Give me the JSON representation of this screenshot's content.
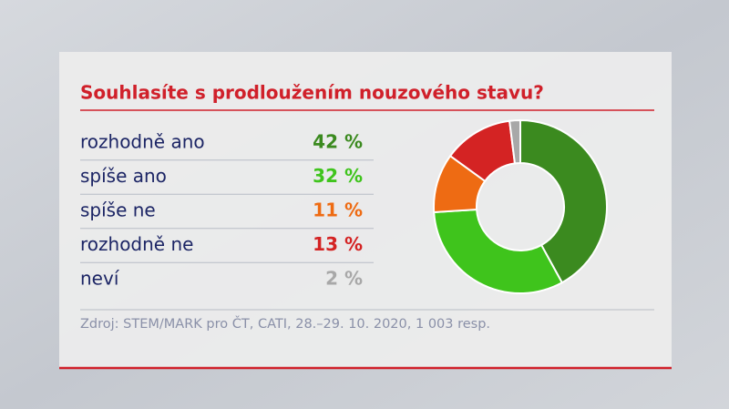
{
  "chart_data": {
    "type": "donut",
    "title": "Souhlasíte s prodloužením nouzového stavu?",
    "categories": [
      "rozhodně ano",
      "spíše ano",
      "spíše ne",
      "rozhodně ne",
      "neví"
    ],
    "values": [
      42,
      32,
      11,
      13,
      2
    ],
    "value_labels": [
      "42 %",
      "32 %",
      "11 %",
      "13 %",
      "2 %"
    ],
    "colors": [
      "#3b8a1f",
      "#3fc41c",
      "#ee6b13",
      "#d42323",
      "#a8a8a8"
    ],
    "source": "Zdroj: STEM/MARK pro ČT, CATI, 28.–29. 10. 2020, 1 003 resp."
  }
}
